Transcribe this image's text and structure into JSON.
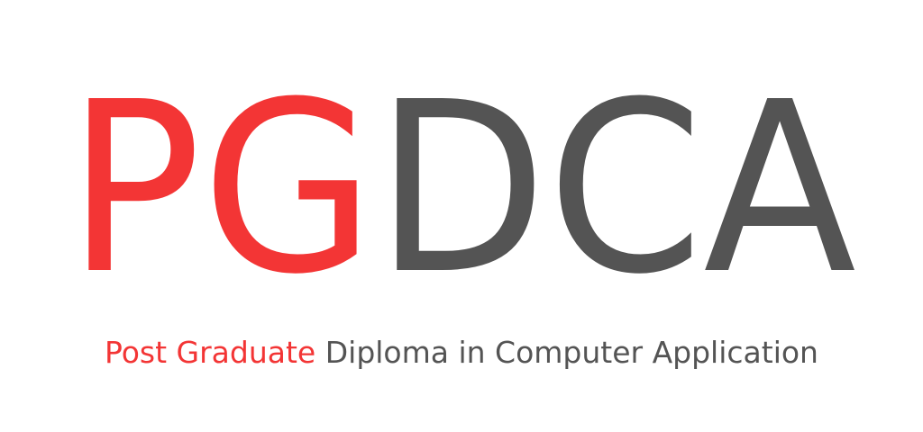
{
  "logo": {
    "accent_text": "PG",
    "main_text": "DCA"
  },
  "tagline": {
    "accent_text": "Post Graduate",
    "main_text": "Diploma in Computer Application"
  },
  "colors": {
    "accent": "#f33535",
    "main": "#545454",
    "background": "#ffffff"
  }
}
